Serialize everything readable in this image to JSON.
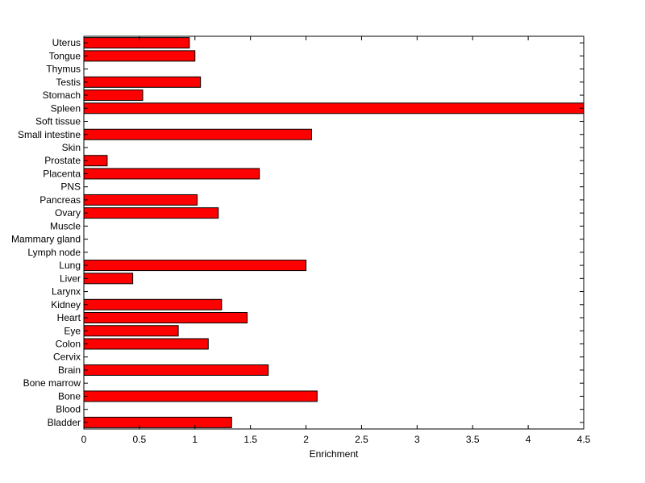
{
  "chart_data": {
    "type": "bar",
    "orientation": "horizontal",
    "categories": [
      "Bladder",
      "Blood",
      "Bone",
      "Bone marrow",
      "Brain",
      "Cervix",
      "Colon",
      "Eye",
      "Heart",
      "Kidney",
      "Larynx",
      "Liver",
      "Lung",
      "Lymph node",
      "Mammary gland",
      "Muscle",
      "Ovary",
      "Pancreas",
      "PNS",
      "Placenta",
      "Prostate",
      "Skin",
      "Small intestine",
      "Soft tissue",
      "Spleen",
      "Stomach",
      "Testis",
      "Thymus",
      "Tongue",
      "Uterus"
    ],
    "values": [
      1.33,
      0,
      2.1,
      0,
      1.66,
      0,
      1.12,
      0.85,
      1.47,
      1.24,
      0,
      0.44,
      2.0,
      0,
      0,
      0,
      1.21,
      1.02,
      0,
      1.58,
      0.21,
      0,
      2.05,
      0,
      4.5,
      0.53,
      1.05,
      0,
      1.0,
      0.95
    ],
    "xlabel": "Enrichment",
    "ylabel": "",
    "title": "",
    "xlim": [
      0,
      4.5
    ],
    "xticks": [
      "0",
      "0.5",
      "1",
      "1.5",
      "2",
      "2.5",
      "3",
      "3.5",
      "4",
      "4.5"
    ],
    "xtick_values": [
      0,
      0.5,
      1,
      1.5,
      2,
      2.5,
      3,
      3.5,
      4,
      4.5
    ],
    "grid": false,
    "bar_color": "#ff0000"
  }
}
